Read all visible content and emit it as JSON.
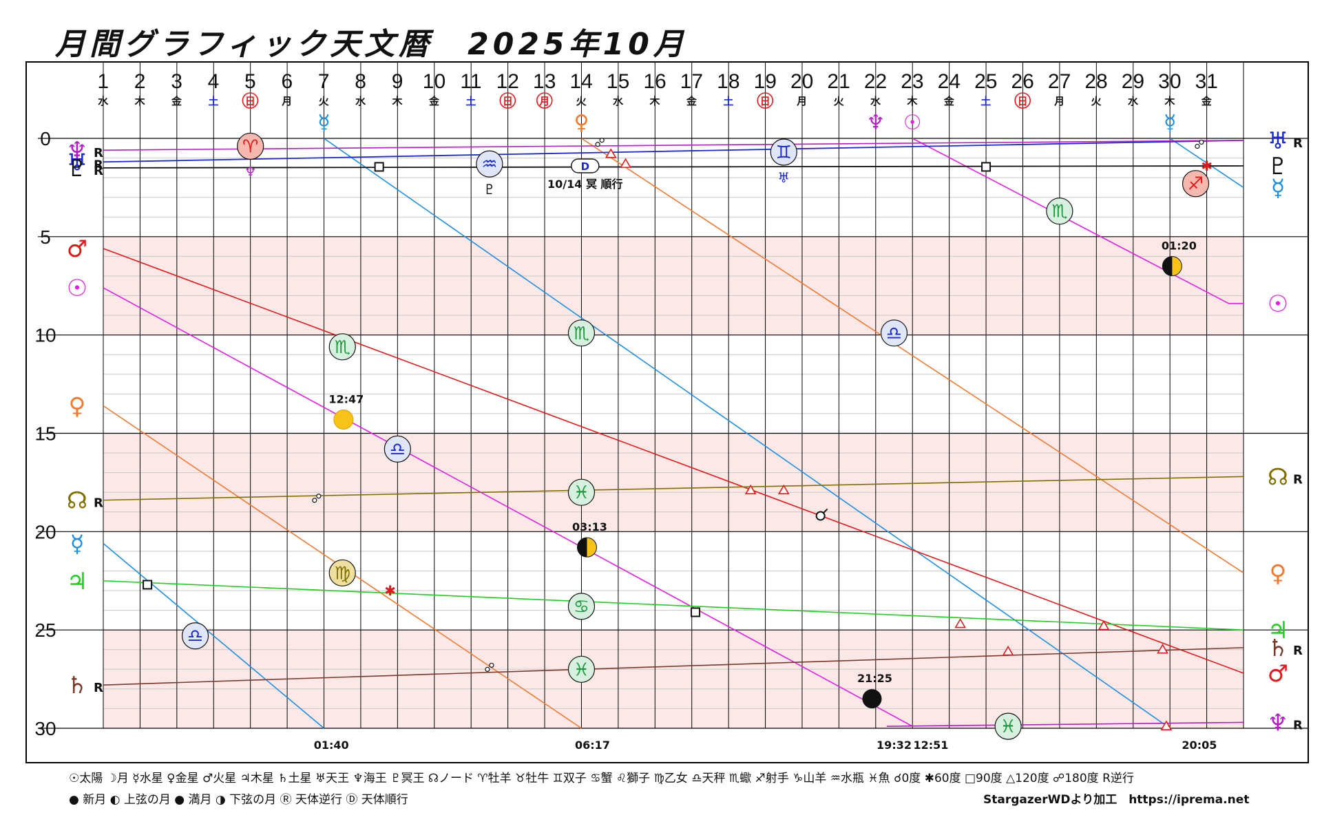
{
  "title": "月間グラフィック天文暦　2025年10月",
  "legend_line1": "☉太陽 ☽月 ☿水星 ♀金星 ♂火星 ♃木星 ♄土星 ♅天王 ♆海王 ♇冥王 ☊ノード  ♈牡羊 ♉牡牛 ♊双子 ♋蟹 ♌獅子 ♍乙女 ♎天秤 ♏蠍 ♐射手 ♑山羊 ♒水瓶 ♓魚   ☌0度 ✱60度 □90度 △120度 ☍180度 R逆行",
  "legend_line2": "● 新月  ◐ 上弦の月  ● 満月  ◑ 下弦の月  Ⓡ 天体逆行  Ⓓ 天体順行",
  "credit": "StargazerWDより加工　https://iprema.net",
  "colors": {
    "sun": "#e020e0",
    "moon": "#111111",
    "mercury": "#1e8fe0",
    "venus": "#f07a30",
    "mars": "#e01a1a",
    "jupiter": "#22cc22",
    "saturn": "#7a3a2a",
    "uranus": "#1a2ad0",
    "neptune": "#b020c0",
    "pluto": "#111111",
    "node": "#807000",
    "band": "#fde8e8"
  },
  "chart_data": {
    "type": "line",
    "x_axis": "day of month (October 2025)",
    "xlim": [
      1,
      32
    ],
    "ylim": [
      0,
      30
    ],
    "y_ticks": [
      0,
      5,
      10,
      15,
      20,
      25,
      30
    ],
    "y_ticks_visible": [
      "0",
      "5",
      "10",
      "15",
      "20",
      "25",
      "30"
    ],
    "days": [
      "1",
      "2",
      "3",
      "4",
      "5",
      "6",
      "7",
      "8",
      "9",
      "10",
      "11",
      "12",
      "13",
      "14",
      "15",
      "16",
      "17",
      "18",
      "19",
      "20",
      "21",
      "22",
      "23",
      "24",
      "25",
      "26",
      "27",
      "28",
      "29",
      "30",
      "31"
    ],
    "weekdays": [
      "水",
      "木",
      "金",
      "土",
      "日",
      "月",
      "火",
      "水",
      "木",
      "金",
      "土",
      "日",
      "月",
      "火",
      "水",
      "木",
      "金",
      "土",
      "日",
      "月",
      "火",
      "水",
      "木",
      "金",
      "土",
      "日",
      "月",
      "火",
      "水",
      "木",
      "金"
    ],
    "weekday_colors": [
      "k",
      "k",
      "k",
      "b",
      "r",
      "k",
      "k",
      "k",
      "k",
      "k",
      "b",
      "r",
      "r",
      "k",
      "k",
      "k",
      "k",
      "b",
      "r",
      "k",
      "k",
      "k",
      "k",
      "k",
      "b",
      "r",
      "k",
      "k",
      "k",
      "k",
      "k"
    ],
    "shaded_bands": [
      [
        5,
        10
      ],
      [
        15,
        20
      ],
      [
        25,
        30
      ]
    ],
    "series": [
      {
        "key": "sun",
        "glyph": "☉",
        "segments": [
          [
            [
              1,
              7.6
            ],
            [
              23,
              29.9
            ]
          ],
          [
            [
              23,
              0
            ],
            [
              31.6,
              8.4
            ]
          ],
          [
            [
              31.6,
              8.4
            ],
            [
              32,
              8.4
            ]
          ]
        ],
        "left": {
          "y": 7.6
        },
        "right": {
          "y": 8.4
        }
      },
      {
        "key": "mercury",
        "glyph": "☿",
        "segments": [
          [
            [
              1,
              20.6
            ],
            [
              7,
              30
            ]
          ],
          [
            [
              7,
              0
            ],
            [
              30,
              30
            ]
          ],
          [
            [
              30,
              0
            ],
            [
              32,
              2.5
            ]
          ]
        ],
        "left": {
          "y": 20.6
        },
        "right": {
          "y": 2.5
        }
      },
      {
        "key": "venus",
        "glyph": "♀",
        "segments": [
          [
            [
              1,
              13.6
            ],
            [
              14,
              30
            ]
          ],
          [
            [
              14,
              0
            ],
            [
              32,
              22.1
            ]
          ]
        ],
        "left": {
          "y": 13.6
        },
        "right": {
          "y": 22.1
        }
      },
      {
        "key": "mars",
        "glyph": "♂",
        "segments": [
          [
            [
              1,
              5.6
            ],
            [
              32,
              27.2
            ]
          ]
        ],
        "left": {
          "y": 5.6
        },
        "right": {
          "y": 27.2
        }
      },
      {
        "key": "jupiter",
        "glyph": "♃",
        "segments": [
          [
            [
              1,
              22.5
            ],
            [
              32,
              25.0
            ]
          ]
        ],
        "left": {
          "y": 22.5
        },
        "right": {
          "y": 25.0
        }
      },
      {
        "key": "saturn",
        "glyph": "♄",
        "segments": [
          [
            [
              1,
              27.8
            ],
            [
              32,
              25.9
            ]
          ]
        ],
        "left": {
          "y": 27.8,
          "r": "R"
        },
        "right": {
          "y": 25.9,
          "r": "R"
        }
      },
      {
        "key": "uranus",
        "glyph": "♅",
        "segments": [
          [
            [
              1,
              1.2
            ],
            [
              32,
              0.1
            ]
          ]
        ],
        "left": {
          "y": 1.2,
          "r": "R"
        },
        "right": {
          "y": 0.1,
          "r": "R"
        }
      },
      {
        "key": "neptune",
        "glyph": "♆",
        "segments": [
          [
            [
              1,
              0.6
            ],
            [
              32,
              0.1
            ]
          ],
          [
            [
              22.3,
              29.9
            ],
            [
              32,
              29.7
            ]
          ]
        ],
        "left": {
          "y": 0.6,
          "r": "R"
        },
        "right": {
          "y": 29.7,
          "r": "R"
        }
      },
      {
        "key": "pluto",
        "glyph": "♇",
        "segments": [
          [
            [
              1,
              1.5
            ],
            [
              32,
              1.4
            ]
          ]
        ],
        "left": {
          "y": 1.5,
          "r": "R"
        },
        "right": {
          "y": 1.4
        }
      },
      {
        "key": "node",
        "glyph": "☊",
        "segments": [
          [
            [
              1,
              18.4
            ],
            [
              32,
              17.2
            ]
          ]
        ],
        "left": {
          "y": 18.4,
          "r": "R"
        },
        "right": {
          "y": 17.2,
          "r": "R"
        }
      }
    ],
    "sign_ingress_markers": [
      {
        "day": 5.0,
        "y": 0.4,
        "glyph": "♈",
        "color": "#e01a1a",
        "fill": "#f7b8b0",
        "sub": "♆",
        "subcolor": "#b020c0"
      },
      {
        "day": 11.5,
        "y": 1.3,
        "glyph": "♒",
        "color": "#1a2ad0",
        "fill": "#dfe6f8",
        "sub": "♇",
        "subcolor": "#111111"
      },
      {
        "day": 19.5,
        "y": 0.7,
        "glyph": "♊",
        "color": "#1a2ad0",
        "fill": "#dfe6f8",
        "sub": "♅",
        "subcolor": "#1a2ad0"
      },
      {
        "day": 7.5,
        "y": 10.6,
        "glyph": "♏",
        "color": "#1a9a3a",
        "fill": "#d8f0e0"
      },
      {
        "day": 14.0,
        "y": 9.9,
        "glyph": "♏",
        "color": "#1a9a3a",
        "fill": "#d8f0e0"
      },
      {
        "day": 22.5,
        "y": 9.9,
        "glyph": "♎",
        "color": "#1a2ad0",
        "fill": "#dfe6f8"
      },
      {
        "day": 27.0,
        "y": 3.7,
        "glyph": "♏",
        "color": "#1a9a3a",
        "fill": "#d8f0e0"
      },
      {
        "day": 30.7,
        "y": 2.3,
        "glyph": "♐",
        "color": "#e01a1a",
        "fill": "#f7b8b0"
      },
      {
        "day": 9.0,
        "y": 15.8,
        "glyph": "♎",
        "color": "#1a2ad0",
        "fill": "#dfe6f8"
      },
      {
        "day": 7.5,
        "y": 22.1,
        "glyph": "♍",
        "color": "#807000",
        "fill": "#f0e0a0"
      },
      {
        "day": 3.5,
        "y": 25.3,
        "glyph": "♎",
        "color": "#1a2ad0",
        "fill": "#dfe6f8"
      },
      {
        "day": 14.0,
        "y": 18.0,
        "glyph": "♓",
        "color": "#1a9a3a",
        "fill": "#d8f0e0"
      },
      {
        "day": 14.0,
        "y": 23.8,
        "glyph": "♋",
        "color": "#1a9a3a",
        "fill": "#d8f0e0"
      },
      {
        "day": 14.0,
        "y": 27.0,
        "glyph": "♓",
        "color": "#1a9a3a",
        "fill": "#d8f0e0"
      },
      {
        "day": 25.6,
        "y": 29.9,
        "glyph": "♓",
        "color": "#1a9a3a",
        "fill": "#d8f0e0"
      }
    ],
    "moon_phases": [
      {
        "day": 7.53,
        "y": 14.3,
        "phase": "full",
        "label": "12:47"
      },
      {
        "day": 14.15,
        "y": 20.8,
        "phase": "last",
        "label": "03:13"
      },
      {
        "day": 21.9,
        "y": 28.5,
        "phase": "new",
        "label": "21:25"
      },
      {
        "day": 30.06,
        "y": 6.5,
        "phase": "first",
        "label": "01:20"
      }
    ],
    "aspects": [
      {
        "day": 8.5,
        "y": 1.45,
        "type": "square"
      },
      {
        "day": 25.0,
        "y": 1.45,
        "type": "square"
      },
      {
        "day": 2.2,
        "y": 22.7,
        "type": "square"
      },
      {
        "day": 17.1,
        "y": 24.1,
        "type": "square"
      },
      {
        "day": 14.5,
        "y": 0.2,
        "type": "opposition"
      },
      {
        "day": 6.8,
        "y": 18.3,
        "type": "opposition"
      },
      {
        "day": 11.5,
        "y": 26.9,
        "type": "opposition"
      },
      {
        "day": 30.8,
        "y": 0.3,
        "type": "opposition"
      },
      {
        "day": 20.5,
        "y": 19.2,
        "type": "conjunction"
      },
      {
        "day": 14.8,
        "y": 0.8,
        "type": "trine"
      },
      {
        "day": 15.2,
        "y": 1.3,
        "type": "trine"
      },
      {
        "day": 18.6,
        "y": 17.9,
        "type": "trine"
      },
      {
        "day": 19.5,
        "y": 17.9,
        "type": "trine"
      },
      {
        "day": 24.3,
        "y": 24.7,
        "type": "trine"
      },
      {
        "day": 25.6,
        "y": 26.1,
        "type": "trine"
      },
      {
        "day": 28.2,
        "y": 24.8,
        "type": "trine"
      },
      {
        "day": 29.8,
        "y": 26.0,
        "type": "trine"
      },
      {
        "day": 29.9,
        "y": 29.9,
        "type": "trine"
      },
      {
        "day": 8.8,
        "y": 23.0,
        "type": "sextile"
      },
      {
        "day": 31.0,
        "y": 1.4,
        "type": "sextile"
      }
    ],
    "station": {
      "day": 14.1,
      "y": 1.4,
      "label": "D",
      "text": "10/14 冥 順行"
    },
    "bottom_times": [
      {
        "day": 7.2,
        "label": "01:40"
      },
      {
        "day": 14.3,
        "label": "06:17"
      },
      {
        "day": 22.5,
        "label": "19:32"
      },
      {
        "day": 23.5,
        "label": "12:51"
      },
      {
        "day": 30.8,
        "label": "20:05"
      }
    ],
    "top_markers": [
      {
        "day": 7.0,
        "glyph": "☿",
        "color": "#1e8fe0"
      },
      {
        "day": 14.0,
        "glyph": "♀",
        "color": "#f07a30"
      },
      {
        "day": 22.0,
        "glyph": "♆",
        "color": "#b020c0"
      },
      {
        "day": 23.0,
        "glyph": "☉",
        "color": "#e020e0"
      },
      {
        "day": 30.0,
        "glyph": "☿",
        "color": "#1e8fe0"
      }
    ]
  }
}
